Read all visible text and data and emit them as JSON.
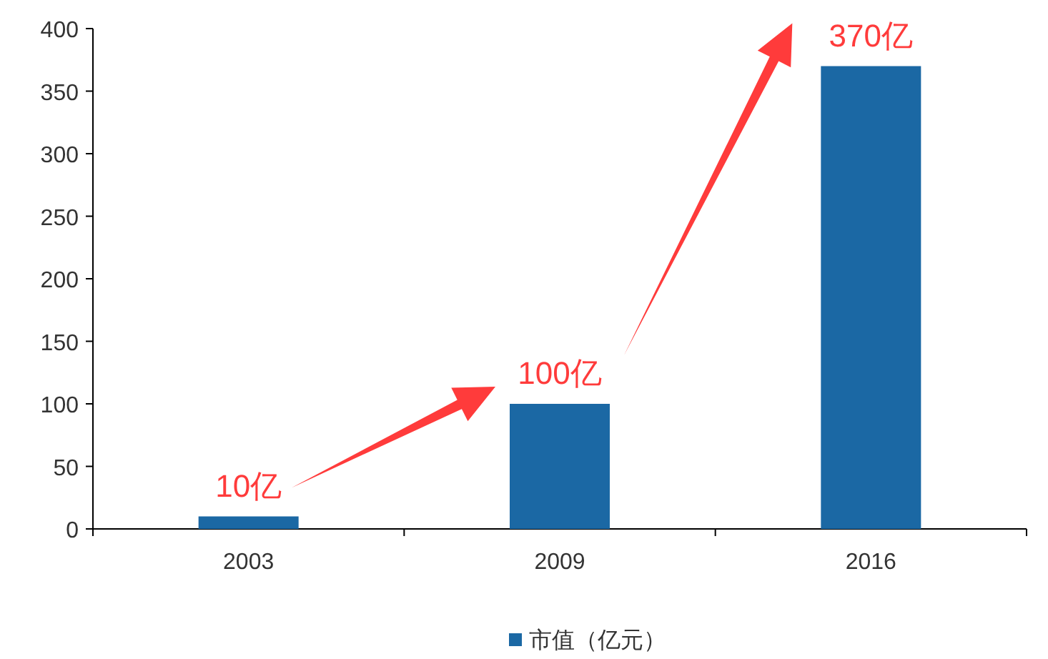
{
  "chart_data": {
    "type": "bar",
    "categories": [
      "2003",
      "2009",
      "2016"
    ],
    "series": [
      {
        "name": "市值（亿元）",
        "color": "#1b68a4",
        "values": [
          10,
          100,
          370
        ],
        "value_labels": [
          "10亿",
          "100亿",
          "370亿"
        ]
      }
    ],
    "ylim": [
      0,
      400
    ],
    "yticks": [
      0,
      50,
      100,
      150,
      200,
      250,
      300,
      350,
      400
    ],
    "grid": false,
    "legend": "bottom"
  }
}
